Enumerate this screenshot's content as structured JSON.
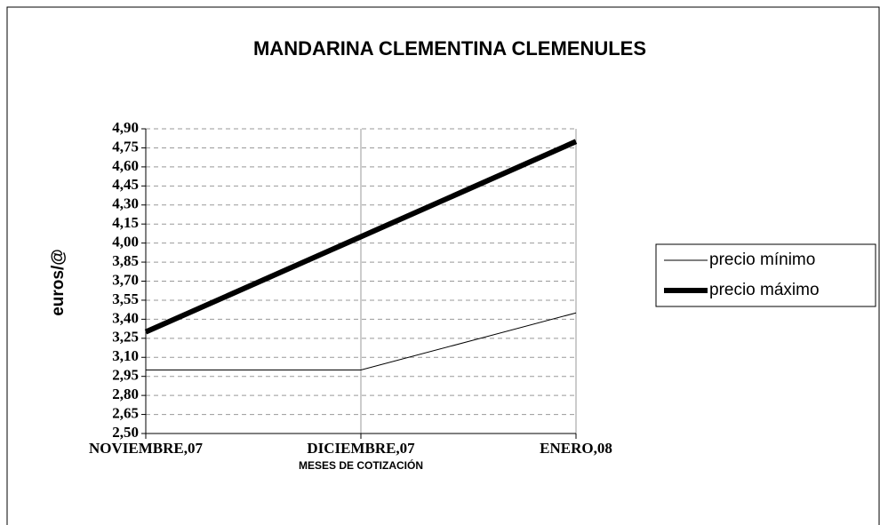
{
  "chart_data": {
    "type": "line",
    "title": "MANDARINA CLEMENTINA CLEMENULES",
    "x_label": "MESES DE COTIZACIÓN",
    "y_label": "euros/@",
    "categories": [
      "NOVIEMBRE,07",
      "DICIEMBRE,07",
      "ENERO,08"
    ],
    "series": [
      {
        "name": "precio mínimo",
        "color": "#000000",
        "width": 1,
        "values": [
          3.0,
          3.0,
          3.45
        ]
      },
      {
        "name": "precio máximo",
        "color": "#000000",
        "width": 6,
        "values": [
          3.3,
          4.05,
          4.8
        ]
      }
    ],
    "ylim": [
      2.5,
      4.9
    ],
    "yticks": [
      {
        "value": 2.5,
        "label": "2,50"
      },
      {
        "value": 2.65,
        "label": "2,65"
      },
      {
        "value": 2.8,
        "label": "2,80"
      },
      {
        "value": 2.95,
        "label": "2,95"
      },
      {
        "value": 3.1,
        "label": "3,10"
      },
      {
        "value": 3.25,
        "label": "3,25"
      },
      {
        "value": 3.4,
        "label": "3,40"
      },
      {
        "value": 3.55,
        "label": "3,55"
      },
      {
        "value": 3.7,
        "label": "3,70"
      },
      {
        "value": 3.85,
        "label": "3,85"
      },
      {
        "value": 4.0,
        "label": "4,00"
      },
      {
        "value": 4.15,
        "label": "4,15"
      },
      {
        "value": 4.3,
        "label": "4,30"
      },
      {
        "value": 4.45,
        "label": "4,45"
      },
      {
        "value": 4.6,
        "label": "4,60"
      },
      {
        "value": 4.75,
        "label": "4,75"
      },
      {
        "value": 4.9,
        "label": "4,90"
      }
    ],
    "grid": true,
    "legend": "right"
  }
}
